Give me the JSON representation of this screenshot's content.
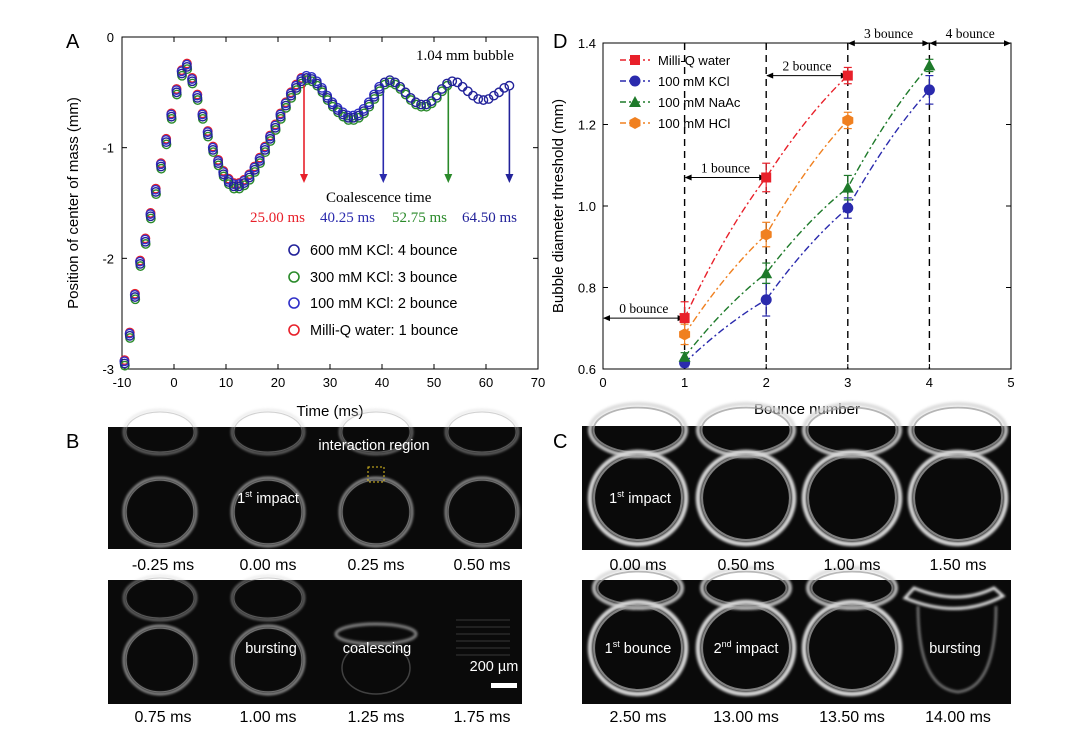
{
  "panel_letters": {
    "A": "A",
    "B": "B",
    "C": "C",
    "D": "D"
  },
  "chart_data": [
    {
      "panel": "A",
      "type": "scatter",
      "annotation": "1.04 mm bubble",
      "xlabel": "Time (ms)",
      "ylabel": "Position of center of mass (mm)",
      "xlim": [
        -10,
        70
      ],
      "ylim": [
        -3,
        0
      ],
      "xticks": [
        "-10",
        "0",
        "10",
        "20",
        "30",
        "40",
        "50",
        "60",
        "70"
      ],
      "yticks": [
        "0",
        "-1",
        "-2",
        "-3"
      ],
      "coalescence_label": "Coalescence time",
      "coalescence_times": [
        {
          "label": "25.00 ms",
          "x": 25.0,
          "color": "#e8202a"
        },
        {
          "label": "40.25 ms",
          "x": 40.25,
          "color": "#2a2aad"
        },
        {
          "label": "52.75 ms",
          "x": 52.75,
          "color": "#2a8a2a"
        },
        {
          "label": "64.50 ms",
          "x": 64.5,
          "color": "#22229a"
        }
      ],
      "series": [
        {
          "name": "600 mM KCl: 4 bounce",
          "color": "#22229a",
          "end": 64.5
        },
        {
          "name": "300 mM KCl: 3 bounce",
          "color": "#2a8a2a",
          "end": 52.75
        },
        {
          "name": "100 mM KCl: 2 bounce",
          "color": "#2f2fc8",
          "end": 40.25
        },
        {
          "name": "Milli-Q water: 1 bounce",
          "color": "#e8202a",
          "end": 25.0
        }
      ],
      "trajectory": [
        [
          -9.5,
          -2.95
        ],
        [
          -8.5,
          -2.7
        ],
        [
          -7.5,
          -2.35
        ],
        [
          -6.5,
          -2.05
        ],
        [
          -5.5,
          -1.85
        ],
        [
          -4.5,
          -1.62
        ],
        [
          -3.5,
          -1.4
        ],
        [
          -2.5,
          -1.17
        ],
        [
          -1.5,
          -0.95
        ],
        [
          -0.5,
          -0.72
        ],
        [
          0.5,
          -0.5
        ],
        [
          1.5,
          -0.33
        ],
        [
          2.5,
          -0.27
        ],
        [
          3.5,
          -0.4
        ],
        [
          4.5,
          -0.55
        ],
        [
          5.5,
          -0.72
        ],
        [
          6.5,
          -0.88
        ],
        [
          7.5,
          -1.02
        ],
        [
          8.5,
          -1.14
        ],
        [
          9.5,
          -1.24
        ],
        [
          10.5,
          -1.31
        ],
        [
          11.5,
          -1.35
        ],
        [
          12.5,
          -1.35
        ],
        [
          13.5,
          -1.32
        ],
        [
          14.5,
          -1.27
        ],
        [
          15.5,
          -1.2
        ],
        [
          16.5,
          -1.12
        ],
        [
          17.5,
          -1.02
        ],
        [
          18.5,
          -0.92
        ],
        [
          19.5,
          -0.82
        ],
        [
          20.5,
          -0.72
        ],
        [
          21.5,
          -0.62
        ],
        [
          22.5,
          -0.53
        ],
        [
          23.5,
          -0.46
        ],
        [
          24.5,
          -0.4
        ],
        [
          25.5,
          -0.37
        ],
        [
          26.5,
          -0.38
        ],
        [
          27.5,
          -0.42
        ],
        [
          28.5,
          -0.48
        ],
        [
          29.5,
          -0.55
        ],
        [
          30.5,
          -0.61
        ],
        [
          31.5,
          -0.66
        ],
        [
          32.5,
          -0.7
        ],
        [
          33.5,
          -0.73
        ],
        [
          34.5,
          -0.73
        ],
        [
          35.5,
          -0.71
        ],
        [
          36.5,
          -0.67
        ],
        [
          37.5,
          -0.61
        ],
        [
          38.5,
          -0.54
        ],
        [
          39.5,
          -0.47
        ],
        [
          40.5,
          -0.41
        ],
        [
          41.5,
          -0.39
        ],
        [
          42.5,
          -0.41
        ],
        [
          43.5,
          -0.45
        ],
        [
          44.5,
          -0.5
        ],
        [
          45.5,
          -0.55
        ],
        [
          46.5,
          -0.59
        ],
        [
          47.5,
          -0.61
        ],
        [
          48.5,
          -0.61
        ],
        [
          49.5,
          -0.58
        ],
        [
          50.5,
          -0.53
        ],
        [
          51.5,
          -0.47
        ],
        [
          52.5,
          -0.42
        ],
        [
          53.5,
          -0.4
        ],
        [
          54.5,
          -0.41
        ],
        [
          55.5,
          -0.45
        ],
        [
          56.5,
          -0.49
        ],
        [
          57.5,
          -0.53
        ],
        [
          58.5,
          -0.56
        ],
        [
          59.5,
          -0.57
        ],
        [
          60.5,
          -0.56
        ],
        [
          61.5,
          -0.53
        ],
        [
          62.5,
          -0.5
        ],
        [
          63.5,
          -0.46
        ],
        [
          64.5,
          -0.44
        ]
      ]
    },
    {
      "panel": "D",
      "type": "line",
      "xlabel": "Bounce number",
      "ylabel": "Bubble diameter threshold (mm)",
      "xlim": [
        0,
        5
      ],
      "ylim": [
        0.6,
        1.4
      ],
      "xticks": [
        "0",
        "1",
        "2",
        "3",
        "4",
        "5"
      ],
      "yticks": [
        "0.6",
        "0.8",
        "1.0",
        "1.2",
        "1.4"
      ],
      "series": [
        {
          "name": "Milli-Q water",
          "color": "#e8202a",
          "marker": "square",
          "x": [
            1,
            2,
            3
          ],
          "y": [
            0.725,
            1.07,
            1.32
          ],
          "err": [
            0.04,
            0.035,
            0.02
          ]
        },
        {
          "name": "100 mM KCl",
          "color": "#2a2aad",
          "marker": "circle",
          "x": [
            1,
            2,
            3,
            4
          ],
          "y": [
            0.615,
            0.77,
            0.995,
            1.285
          ],
          "err": [
            0.01,
            0.04,
            0.025,
            0.035
          ]
        },
        {
          "name": "100 mM NaAc",
          "color": "#1e7a2a",
          "marker": "triangle",
          "x": [
            1,
            2,
            3,
            4
          ],
          "y": [
            0.63,
            0.835,
            1.045,
            1.345
          ],
          "err": [
            0.01,
            0.025,
            0.03,
            0.015
          ]
        },
        {
          "name": "100 mM HCl",
          "color": "#f08020",
          "marker": "hexagon",
          "x": [
            1,
            2,
            3
          ],
          "y": [
            0.685,
            0.93,
            1.21
          ],
          "err": [
            0.025,
            0.03,
            0.02
          ]
        }
      ],
      "bounce_regions": [
        {
          "label": "0 bounce",
          "from": 0,
          "to": 1,
          "y": 0.725
        },
        {
          "label": "1 bounce",
          "from": 1,
          "to": 2,
          "y": 1.07
        },
        {
          "label": "2 bounce",
          "from": 2,
          "to": 3,
          "y": 1.32
        },
        {
          "label": "3 bounce",
          "from": 3,
          "to": 4,
          "y": 1.37
        },
        {
          "label": "4 bounce",
          "from": 4,
          "to": 5,
          "y": 1.37
        }
      ]
    }
  ],
  "panel_B": {
    "frames": [
      "-0.25 ms",
      "0.00 ms",
      "0.25 ms",
      "0.50 ms",
      "0.75 ms",
      "1.00 ms",
      "1.25 ms",
      "1.75 ms"
    ],
    "labels": {
      "interaction": "interaction region",
      "impact_prefix": "1",
      "impact_sup": "st",
      "impact_suffix": " impact",
      "bursting": "bursting",
      "coalescing": "coalescing",
      "scale": "200 µm"
    }
  },
  "panel_C": {
    "frames": [
      "0.00 ms",
      "0.50 ms",
      "1.00 ms",
      "1.50 ms",
      "2.50 ms",
      "13.00 ms",
      "13.50 ms",
      "14.00 ms"
    ],
    "labels": {
      "impact_prefix": "1",
      "impact_sup": "st",
      "impact_suffix": " impact",
      "bounce_prefix": "1",
      "bounce_sup": "st",
      "bounce_suffix": " bounce",
      "impact2_prefix": "2",
      "impact2_sup": "nd",
      "impact2_suffix": " impact",
      "bursting": "bursting"
    }
  }
}
